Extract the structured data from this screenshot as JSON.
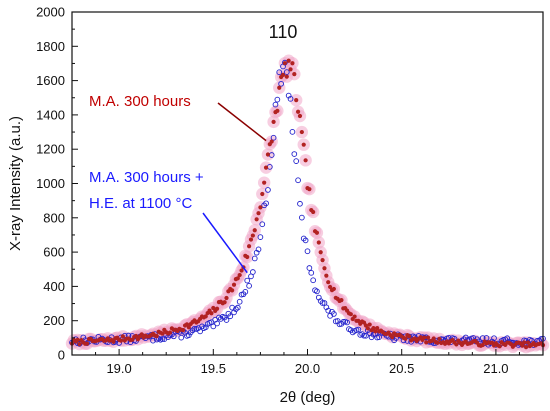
{
  "chart_data": {
    "type": "scatter",
    "title": "",
    "xlabel": "2θ (deg)",
    "ylabel": "X-ray Intensity (a.u.)",
    "xlim": [
      18.75,
      21.25
    ],
    "ylim": [
      0,
      2000
    ],
    "x_ticks": [
      "19.0",
      "19.5",
      "20.0",
      "20.5",
      "21.0"
    ],
    "y_ticks": [
      "0",
      "200",
      "400",
      "600",
      "800",
      "1000",
      "1200",
      "1400",
      "1600",
      "1800",
      "2000"
    ],
    "grid": false,
    "legend": "none",
    "peak_label": "110",
    "annotations": [
      {
        "lines": [
          "M.A. 300 hours"
        ],
        "color": "#c00000",
        "points_to": {
          "x": 19.78,
          "y": 1250
        }
      },
      {
        "lines": [
          "M.A. 300 hours +",
          "H.E. at 1100 °C"
        ],
        "color": "#1a1aff",
        "points_to": {
          "x": 19.68,
          "y": 480
        }
      }
    ],
    "series": [
      {
        "name": "M.A. 300 hours",
        "marker": "filled-circle",
        "color": "#b22222",
        "halo_color": "#f0a6c8",
        "shape": {
          "baseline": 45,
          "peak_x": 19.9,
          "peak_height": 1640,
          "hwhm_left": 0.155,
          "hwhm_right": 0.12,
          "x_start": 18.75,
          "x_end": 21.25,
          "step": 0.01,
          "noise": 12
        }
      },
      {
        "name": "M.A. 300 hours + H.E. at 1100 °C",
        "marker": "open-circle",
        "color": "#2222cc",
        "shape": {
          "baseline": 70,
          "peak_x": 19.875,
          "peak_height": 1610,
          "hwhm_left": 0.1,
          "hwhm_right": 0.085,
          "x_start": 18.75,
          "x_end": 21.25,
          "step": 0.01,
          "noise": 18
        }
      }
    ]
  },
  "colors": {
    "axis": "#111111",
    "red_marker": "#b22222",
    "blue_marker": "#2222cc"
  }
}
